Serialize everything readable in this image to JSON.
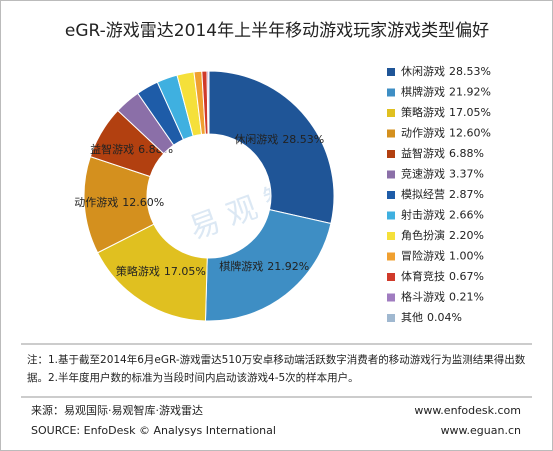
{
  "chart_data": {
    "type": "donut",
    "title": "eGR-游戏雷达2014年上半年移动游戏玩家游戏类型偏好",
    "categories": [
      "休闲游戏",
      "棋牌游戏",
      "策略游戏",
      "动作游戏",
      "益智游戏",
      "竞速游戏",
      "模拟经营",
      "射击游戏",
      "角色扮演",
      "冒险游戏",
      "体育竞技",
      "格斗游戏",
      "其他"
    ],
    "values": [
      28.53,
      21.92,
      17.05,
      12.6,
      6.88,
      3.37,
      2.87,
      2.66,
      2.2,
      1.0,
      0.67,
      0.21,
      0.04
    ],
    "value_labels": [
      "28.53%",
      "21.92%",
      "17.05%",
      "12.60%",
      "6.88%",
      "3.37%",
      "2.87%",
      "2.66%",
      "2.20%",
      "1.00%",
      "0.67%",
      "0.21%",
      "0.04%"
    ],
    "colors": [
      "#1f5597",
      "#3e8ec4",
      "#e0c020",
      "#d4901e",
      "#b24010",
      "#8b6fa8",
      "#1e5ca8",
      "#3fb0e0",
      "#f5e03a",
      "#f0a030",
      "#d03a2a",
      "#a07cc0",
      "#a0b8d0"
    ],
    "note": "注：1.基于截至2014年6月eGR-游戏雷达510万安卓移动端活跃数字消费者的移动游戏行为监测结果得出数据。2.半年度用户数的标准为当段时间内启动该游戏4-5次的样本用户。",
    "watermark": "易 观 智 库",
    "source": "来源：易观国际·易观智库·游戏雷达",
    "source_en": "SOURCE: EnfoDesk © Analysys International",
    "url1": "www.enfodesk.com",
    "url2": "www.eguan.cn"
  }
}
